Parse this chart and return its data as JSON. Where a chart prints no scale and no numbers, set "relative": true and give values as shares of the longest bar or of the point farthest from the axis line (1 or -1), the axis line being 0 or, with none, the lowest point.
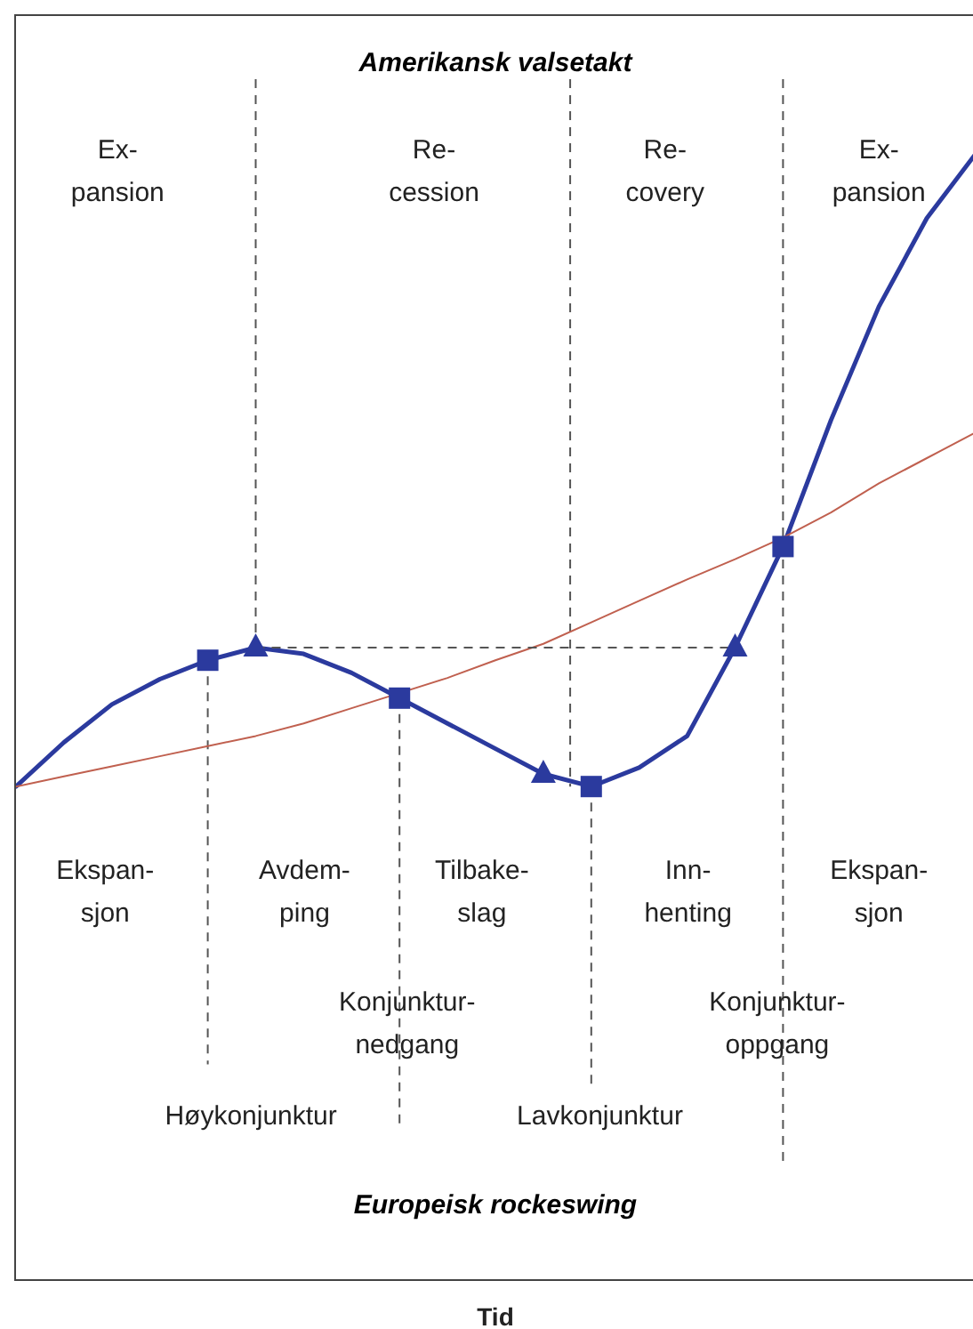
{
  "chart_data": {
    "type": "line",
    "relative": true,
    "tick_labels": false,
    "title": "Amerikansk valsetakt",
    "subtitle": "Europeisk rockeswing",
    "categories": [
      null,
      null,
      null,
      null,
      null,
      null,
      null,
      null,
      null,
      null,
      null,
      null,
      null,
      null,
      null,
      null,
      null,
      null,
      null,
      null,
      null
    ],
    "series": [
      {
        "color": "#2b3a9e",
        "values": [
          0,
          0.07,
          0.13,
          0.17,
          0.2,
          0.22,
          0.21,
          0.18,
          0.14,
          0.1,
          0.06,
          0.02,
          0,
          0.03,
          0.08,
          0.22,
          0.38,
          0.58,
          0.76,
          0.9,
          1
        ]
      },
      {
        "color": "#c0604f",
        "values": [
          0,
          0.016,
          0.032,
          0.048,
          0.064,
          0.08,
          0.1,
          0.124,
          0.148,
          0.172,
          0.2,
          0.226,
          0.26,
          0.294,
          0.328,
          0.36,
          0.394,
          0.434,
          0.48,
          0.52,
          0.56
        ]
      }
    ],
    "ref_lines": [
      {
        "axis": "y",
        "value": 0.22,
        "color": "#555555",
        "line_style": "dashed"
      }
    ],
    "annotations": [
      "Ex-\npansion",
      "Re-\ncession",
      "Re-\ncovery",
      "Ex-\npansion",
      "Ekspan-\nsjon",
      "Avdem-\nping",
      "Tilbake-\nslag",
      "Inn-\nhenting",
      "Ekspan-\nsjon",
      "Konjunktur-\nnedgang",
      "Konjunktur-\noppgang",
      "Høykonjunktur",
      "Lavkonjunktur",
      "Tid"
    ]
  }
}
